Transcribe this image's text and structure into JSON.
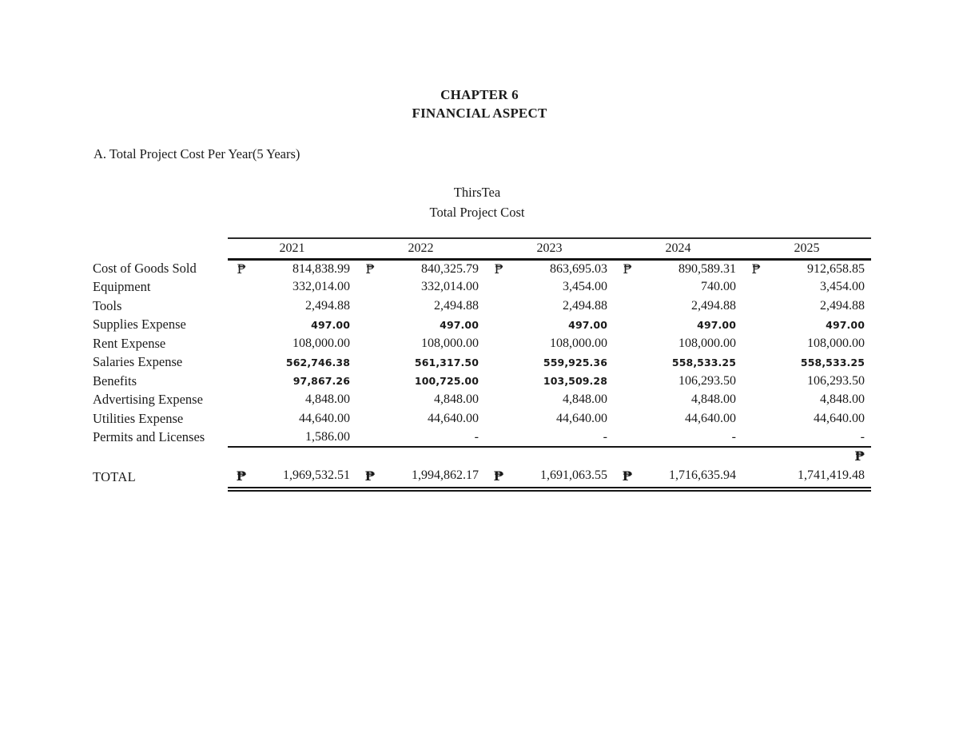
{
  "header": {
    "chapter": "CHAPTER 6",
    "subtitle": "FINANCIAL ASPECT",
    "section": "A. Total Project Cost Per Year(5 Years)",
    "company": "ThirsTea",
    "table_title": "Total Project Cost"
  },
  "currency": {
    "symbol": "₱"
  },
  "table": {
    "years": [
      "2021",
      "2022",
      "2023",
      "2024",
      "2025"
    ],
    "rows": [
      {
        "label": "Cost of Goods Sold",
        "values": [
          "814,838.99",
          "840,325.79",
          "863,695.03",
          "890,589.31",
          "912,658.85"
        ]
      },
      {
        "label": "Equipment",
        "values": [
          "332,014.00",
          "332,014.00",
          "3,454.00",
          "740.00",
          "3,454.00"
        ]
      },
      {
        "label": "Tools",
        "values": [
          "2,494.88",
          "2,494.88",
          "2,494.88",
          "2,494.88",
          "2,494.88"
        ]
      },
      {
        "label": "Supplies Expense",
        "values": [
          "497.00",
          "497.00",
          "497.00",
          "497.00",
          "497.00"
        ]
      },
      {
        "label": "Rent Expense",
        "values": [
          "108,000.00",
          "108,000.00",
          "108,000.00",
          "108,000.00",
          "108,000.00"
        ]
      },
      {
        "label": "Salaries Expense",
        "values": [
          "562,746.38",
          "561,317.50",
          "559,925.36",
          "558,533.25",
          "558,533.25"
        ]
      },
      {
        "label": "Benefits",
        "values": [
          "97,867.26",
          "100,725.00",
          "103,509.28",
          "106,293.50",
          "106,293.50"
        ]
      },
      {
        "label": "Advertising Expense",
        "values": [
          "4,848.00",
          "4,848.00",
          "4,848.00",
          "4,848.00",
          "4,848.00"
        ]
      },
      {
        "label": "Utilities Expense",
        "values": [
          "44,640.00",
          "44,640.00",
          "44,640.00",
          "44,640.00",
          "44,640.00"
        ]
      },
      {
        "label": "Permits and Licenses",
        "values": [
          "1,586.00",
          "-",
          "-",
          "-",
          "-"
        ]
      }
    ],
    "total": {
      "label": "TOTAL",
      "values": [
        "1,969,532.51",
        "1,994,862.17",
        "1,691,063.55",
        "1,716,635.94",
        "1,741,419.48"
      ]
    }
  }
}
